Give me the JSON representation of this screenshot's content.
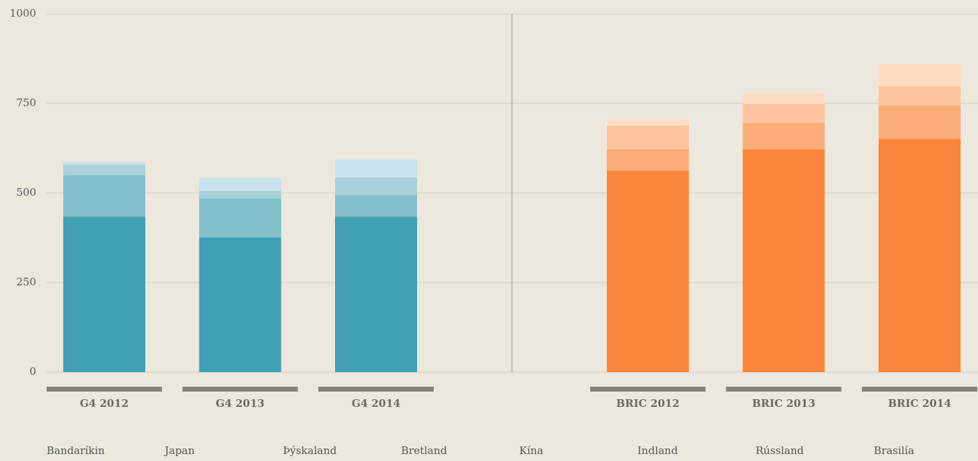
{
  "chart_data": {
    "type": "stacked_bar",
    "categories": [
      "G4 2012",
      "G4 2013",
      "G4 2014",
      "BRIC 2012",
      "BRIC 2013",
      "BRIC 2014"
    ],
    "series": [
      {
        "name": "Bandaríkin",
        "color": "#409fb3",
        "values": [
          434,
          376,
          434,
          null,
          null,
          null
        ]
      },
      {
        "name": "Japan",
        "color": "#84bfcc",
        "values": [
          116,
          110,
          60,
          null,
          null,
          null
        ]
      },
      {
        "name": "Þýskaland",
        "color": "#a8d1dc",
        "values": [
          29,
          20,
          49,
          null,
          null,
          null
        ]
      },
      {
        "name": "Bretland",
        "color": "#c8e3eb",
        "values": [
          8,
          37,
          50,
          null,
          null,
          null
        ]
      },
      {
        "name": "Kína",
        "color": "#f9863c",
        "values": [
          null,
          null,
          null,
          562,
          622,
          651
        ]
      },
      {
        "name": "Indland",
        "color": "#fcac78",
        "values": [
          null,
          null,
          null,
          60,
          74,
          93
        ]
      },
      {
        "name": "Rússland",
        "color": "#fdc49e",
        "values": [
          null,
          null,
          null,
          66,
          52,
          54
        ]
      },
      {
        "name": "Brasilía",
        "color": "#fedcc4",
        "values": [
          null,
          null,
          null,
          17,
          31,
          62
        ]
      }
    ],
    "ylim": [
      0,
      1000
    ],
    "yticks": [
      0,
      250,
      500,
      750,
      1000
    ],
    "grid": true
  }
}
